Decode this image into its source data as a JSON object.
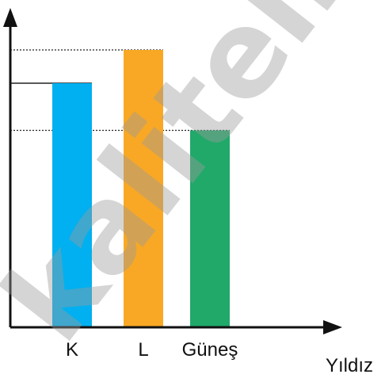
{
  "chart_data": {
    "type": "bar",
    "categories": [
      "K",
      "L",
      "Güneş"
    ],
    "values": [
      0.88,
      1.0,
      0.71
    ],
    "ylim": [
      0,
      1.18
    ],
    "xlabel": "Yıldız",
    "ylabel": "",
    "grid": false,
    "colors": [
      "#00B0F0",
      "#F9A825",
      "#21A96A"
    ],
    "reference_lines": {
      "values": [
        1.0,
        0.88,
        0.71
      ],
      "styles": [
        "dotted",
        "solid",
        "dotted"
      ]
    },
    "watermark": {
      "text": "kaliteli",
      "color": "#9a9a9a"
    }
  }
}
